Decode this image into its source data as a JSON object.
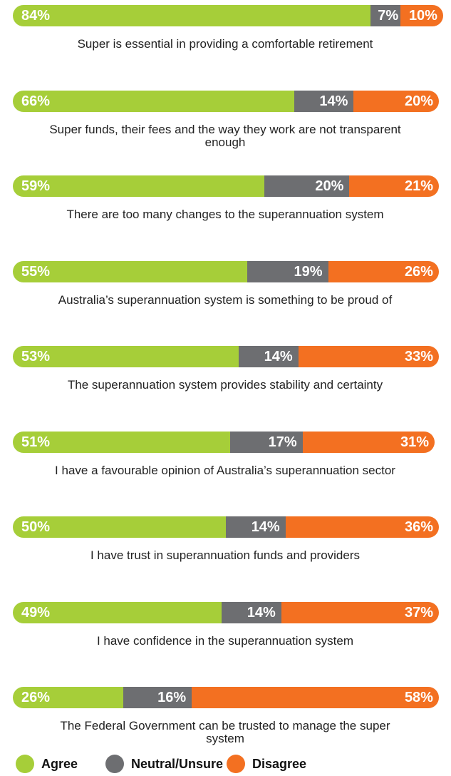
{
  "chart_data": {
    "type": "stacked-bar",
    "categories": [
      "Super is essential in providing a comfortable retirement",
      "Super funds, their fees and the way they work are not transparent enough",
      "There are too many changes to the superannuation system",
      "Australia’s superannuation system is something to be proud of",
      "The superannuation system provides stability and certainty",
      "I have a favourable opinion of Australia’s superannuation sector",
      "I have trust in superannuation funds and providers",
      "I have confidence in the superannuation system",
      "The Federal Government can be trusted to manage the super system"
    ],
    "series": [
      {
        "name": "Agree",
        "color": "#a6ce39",
        "values": [
          84,
          66,
          59,
          55,
          53,
          51,
          50,
          49,
          26
        ],
        "value_labels": [
          "84%",
          "66%",
          "59%",
          "55%",
          "53%",
          "51%",
          "50%",
          "49%",
          "26%"
        ]
      },
      {
        "name": "Neutral/Unsure",
        "color": "#6d6e71",
        "values": [
          7,
          14,
          20,
          19,
          14,
          17,
          14,
          14,
          16
        ],
        "value_labels": [
          "7%",
          "14%",
          "20%",
          "19%",
          "14%",
          "17%",
          "14%",
          "14%",
          "16%"
        ]
      },
      {
        "name": "Disagree",
        "color": "#f37021",
        "values": [
          10,
          20,
          21,
          26,
          33,
          31,
          36,
          37,
          58
        ],
        "value_labels": [
          "10%",
          "20%",
          "21%",
          "26%",
          "33%",
          "31%",
          "36%",
          "37%",
          "58%"
        ]
      }
    ],
    "legend": "bottom"
  }
}
